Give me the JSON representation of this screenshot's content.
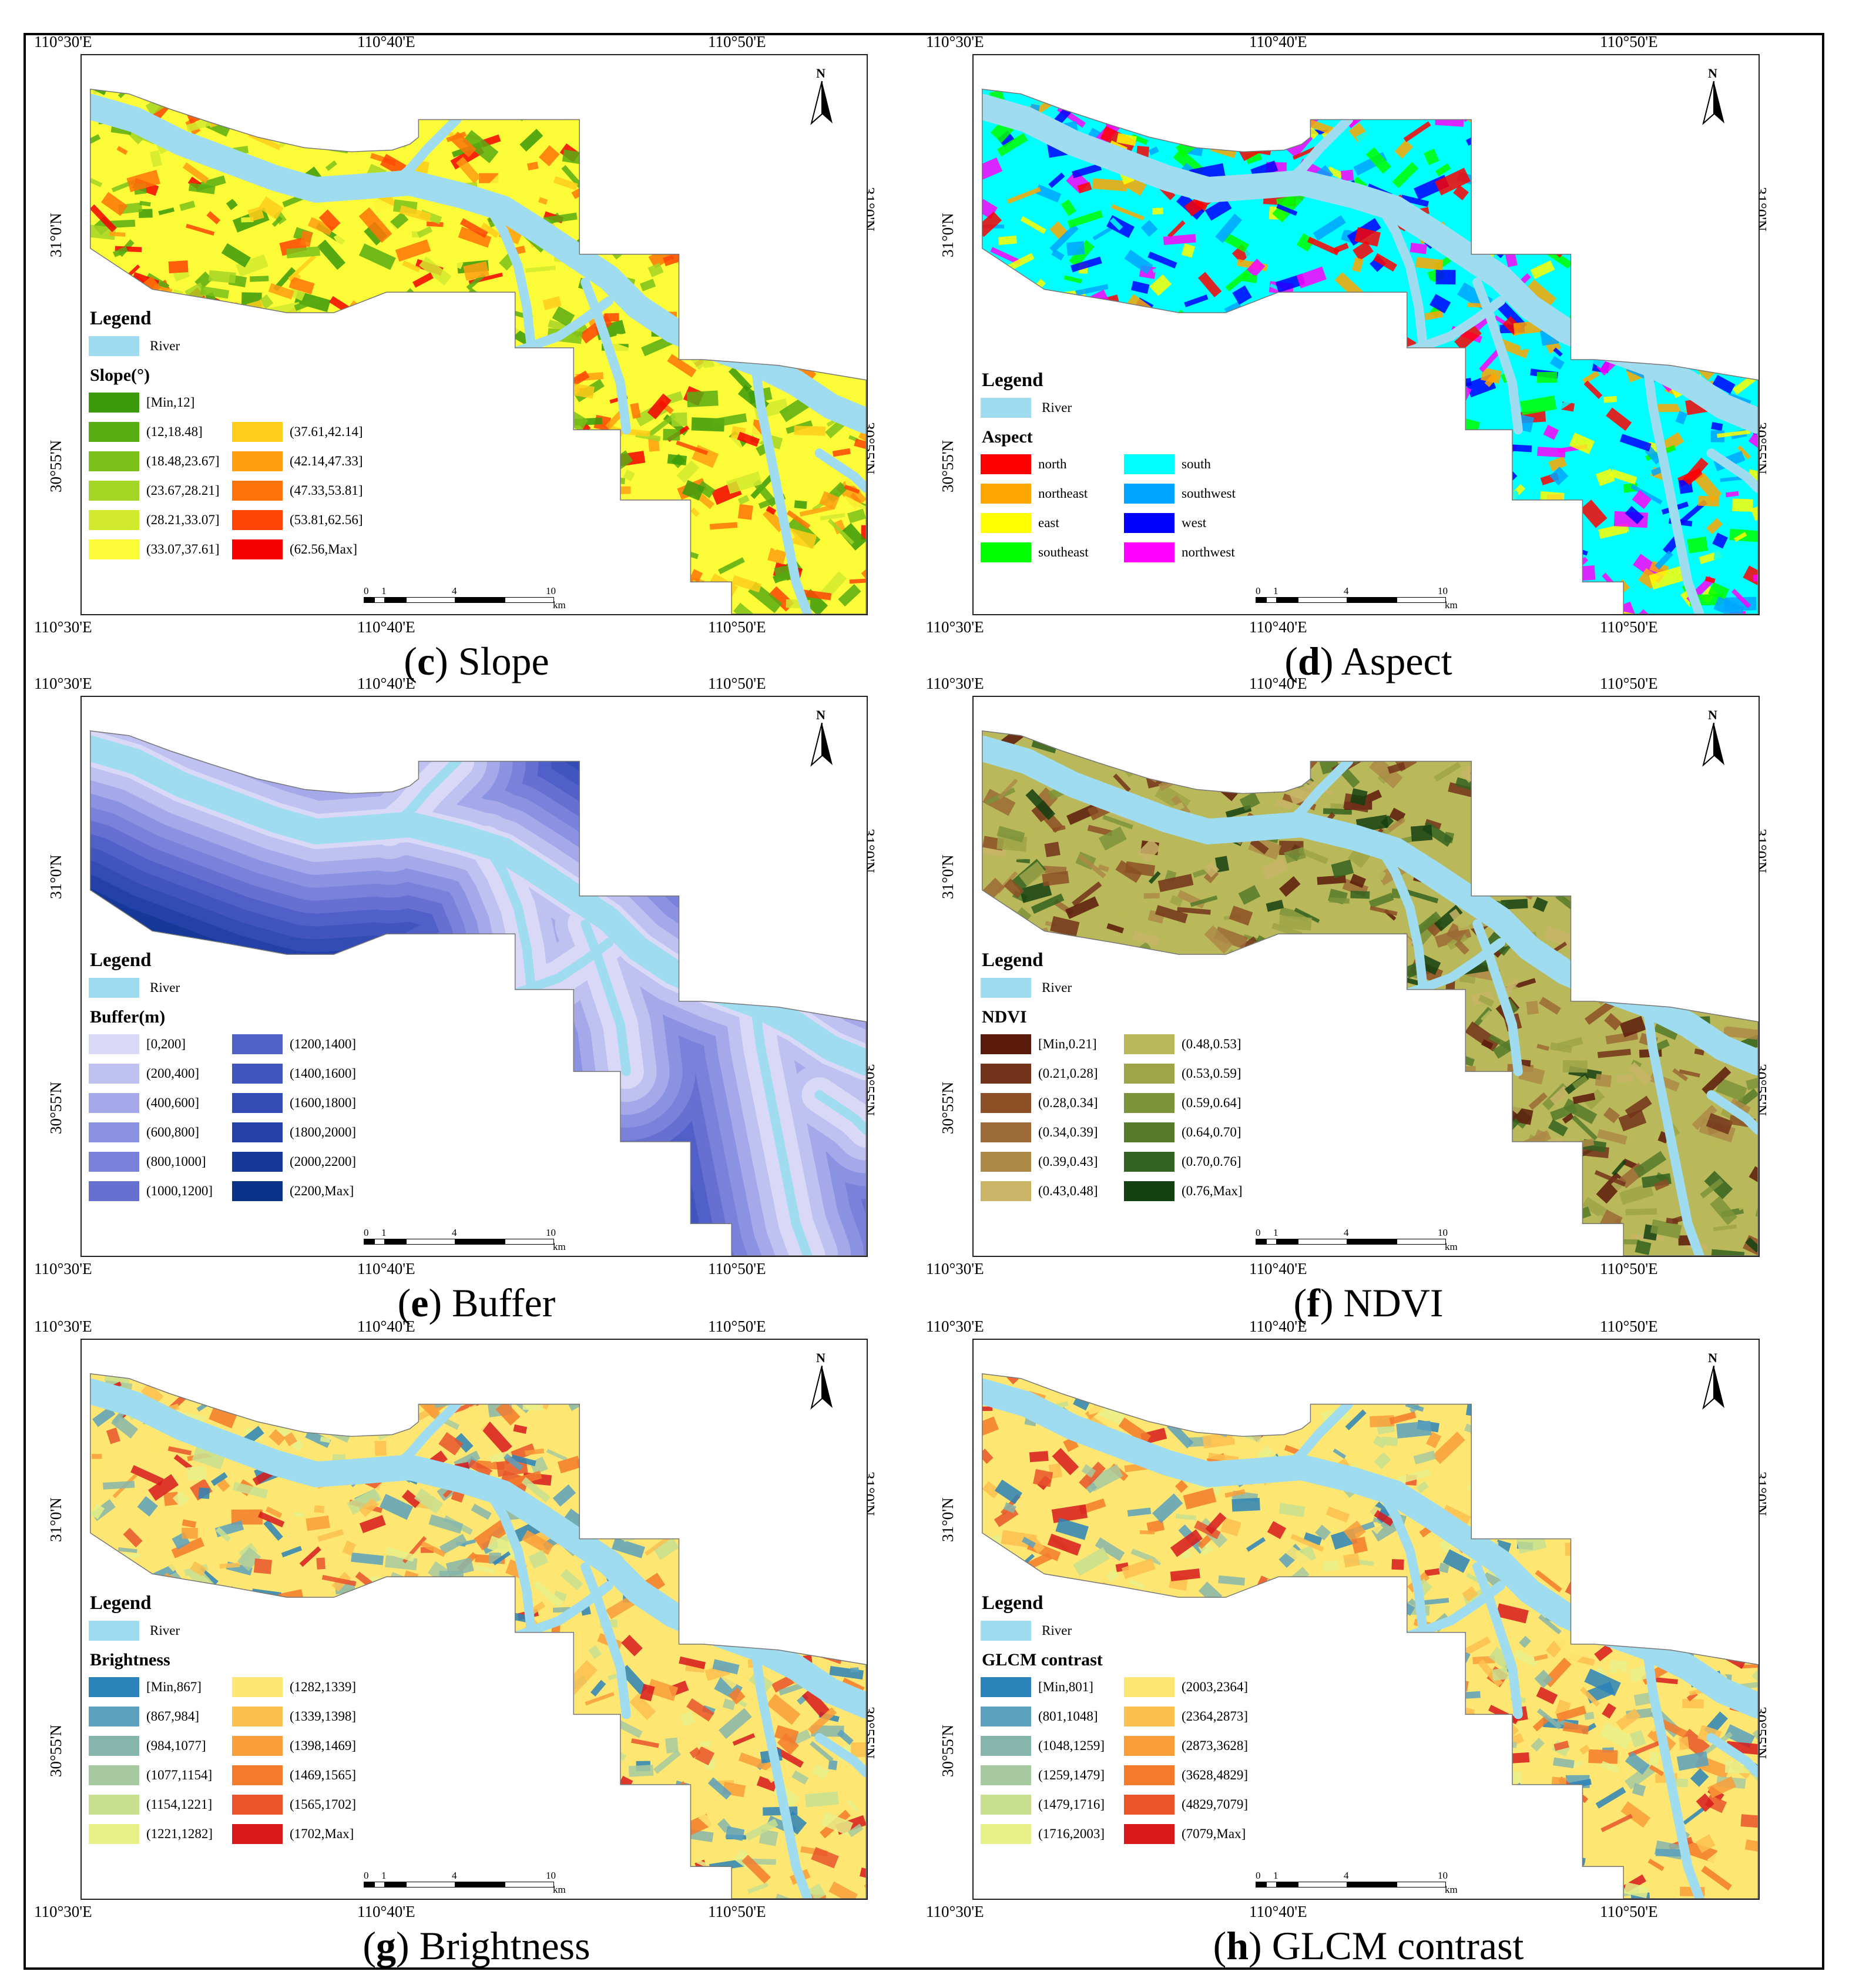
{
  "coords": {
    "lon_top": [
      "110°30'E",
      "110°40'E",
      "110°50'E"
    ],
    "lon_bottom": [
      "110°30'E",
      "110°40'E",
      "110°50'E"
    ],
    "lat_left": [
      "31°0'N",
      "30°55'N"
    ],
    "lat_right": [
      "31°0'N",
      "30°55'N"
    ]
  },
  "north_label": "N",
  "scale": {
    "labels": [
      "0",
      "1",
      "4",
      "10"
    ],
    "unit": "km"
  },
  "legend_title": "Legend",
  "river_label": "River",
  "colors": {
    "river": "#9fdcf0",
    "frame": "#000000"
  },
  "panels": [
    {
      "id": "c",
      "letter": "c",
      "caption": "Slope",
      "subtitle": "Slope(°)",
      "items": [
        {
          "label": "[Min,12]",
          "color": "#3a9a0a"
        },
        {
          "label": "(12,18.48]",
          "color": "#58ad12"
        },
        {
          "label": "(18.48,23.67]",
          "color": "#7bc11a"
        },
        {
          "label": "(23.67,28.21]",
          "color": "#a3d524"
        },
        {
          "label": "(28.21,33.07]",
          "color": "#d1ea2e"
        },
        {
          "label": "(33.07,37.61]",
          "color": "#fbfb38"
        },
        {
          "label": "(37.61,42.14]",
          "color": "#ffcc1a"
        },
        {
          "label": "(42.14,47.33]",
          "color": "#ff9f10"
        },
        {
          "label": "(47.33,53.81]",
          "color": "#ff7408"
        },
        {
          "label": "(53.81,62.56]",
          "color": "#ff4404"
        },
        {
          "label": "(62.56,Max]",
          "color": "#f40000"
        }
      ]
    },
    {
      "id": "d",
      "letter": "d",
      "caption": "Aspect",
      "subtitle": "Aspect",
      "items": [
        {
          "label": "north",
          "color": "#ff0000"
        },
        {
          "label": "northeast",
          "color": "#ffa500"
        },
        {
          "label": "east",
          "color": "#ffff00"
        },
        {
          "label": "southeast",
          "color": "#00ff00"
        },
        {
          "label": "south",
          "color": "#00ffff"
        },
        {
          "label": "southwest",
          "color": "#00a5ff"
        },
        {
          "label": "west",
          "color": "#0000ff"
        },
        {
          "label": "northwest",
          "color": "#ff00ff"
        }
      ]
    },
    {
      "id": "e",
      "letter": "e",
      "caption": "Buffer",
      "subtitle": "Buffer(m)",
      "items": [
        {
          "label": "[0,200]",
          "color": "#d9d9f7"
        },
        {
          "label": "(200,400]",
          "color": "#bfc1f1"
        },
        {
          "label": "(400,600]",
          "color": "#a5a9ea"
        },
        {
          "label": "(600,800]",
          "color": "#8c92e2"
        },
        {
          "label": "(800,1000]",
          "color": "#7a81da"
        },
        {
          "label": "(1000,1200]",
          "color": "#6670d1"
        },
        {
          "label": "(1200,1400]",
          "color": "#5160c8"
        },
        {
          "label": "(1400,1600]",
          "color": "#4255bf"
        },
        {
          "label": "(1600,1800]",
          "color": "#324bb5"
        },
        {
          "label": "(1800,2000]",
          "color": "#2341a8"
        },
        {
          "label": "(2000,2200]",
          "color": "#163999"
        },
        {
          "label": "(2200,Max]",
          "color": "#083389"
        }
      ]
    },
    {
      "id": "f",
      "letter": "f",
      "caption": "NDVI",
      "subtitle": "NDVI",
      "items": [
        {
          "label": "[Min,0.21]",
          "color": "#5a1a0c"
        },
        {
          "label": "(0.21,0.28]",
          "color": "#73321a"
        },
        {
          "label": "(0.28,0.34]",
          "color": "#8c4f26"
        },
        {
          "label": "(0.34,0.39]",
          "color": "#9c6a36"
        },
        {
          "label": "(0.39,0.43]",
          "color": "#ad8a47"
        },
        {
          "label": "(0.43,0.48]",
          "color": "#c9b468"
        },
        {
          "label": "(0.48,0.53]",
          "color": "#b9b85a"
        },
        {
          "label": "(0.53,0.59]",
          "color": "#9ea448"
        },
        {
          "label": "(0.59,0.64]",
          "color": "#7c933a"
        },
        {
          "label": "(0.64,0.70]",
          "color": "#557a2a"
        },
        {
          "label": "(0.70,0.76]",
          "color": "#346220"
        },
        {
          "label": "(0.76,Max]",
          "color": "#143f10"
        }
      ]
    },
    {
      "id": "g",
      "letter": "g",
      "caption": "Brightness",
      "subtitle": "Brightness",
      "items": [
        {
          "label": "[Min,867]",
          "color": "#2b83ba"
        },
        {
          "label": "(867,984]",
          "color": "#5ba0bd"
        },
        {
          "label": "(984,1077]",
          "color": "#86b5ab"
        },
        {
          "label": "(1077,1154]",
          "color": "#a7c9a0"
        },
        {
          "label": "(1154,1221]",
          "color": "#c8df8f"
        },
        {
          "label": "(1221,1282]",
          "color": "#e8f088"
        },
        {
          "label": "(1282,1339]",
          "color": "#fde671"
        },
        {
          "label": "(1339,1398]",
          "color": "#fdc04f"
        },
        {
          "label": "(1398,1469]",
          "color": "#f99e3a"
        },
        {
          "label": "(1469,1565]",
          "color": "#f47a2c"
        },
        {
          "label": "(1565,1702]",
          "color": "#e9542a"
        },
        {
          "label": "(1702,Max]",
          "color": "#d7191c"
        }
      ]
    },
    {
      "id": "h",
      "letter": "h",
      "caption": "GLCM contrast",
      "subtitle": "GLCM contrast",
      "items": [
        {
          "label": "[Min,801]",
          "color": "#2b83ba"
        },
        {
          "label": "(801,1048]",
          "color": "#5ba0bd"
        },
        {
          "label": "(1048,1259]",
          "color": "#86b5ab"
        },
        {
          "label": "(1259,1479]",
          "color": "#a7c9a0"
        },
        {
          "label": "(1479,1716]",
          "color": "#c8df8f"
        },
        {
          "label": "(1716,2003]",
          "color": "#e8f088"
        },
        {
          "label": "(2003,2364]",
          "color": "#fde671"
        },
        {
          "label": "(2364,2873]",
          "color": "#fdc04f"
        },
        {
          "label": "(2873,3628]",
          "color": "#f99e3a"
        },
        {
          "label": "(3628,4829]",
          "color": "#f47a2c"
        },
        {
          "label": "(4829,7079]",
          "color": "#e9542a"
        },
        {
          "label": "(7079,Max]",
          "color": "#d7191c"
        }
      ]
    }
  ]
}
